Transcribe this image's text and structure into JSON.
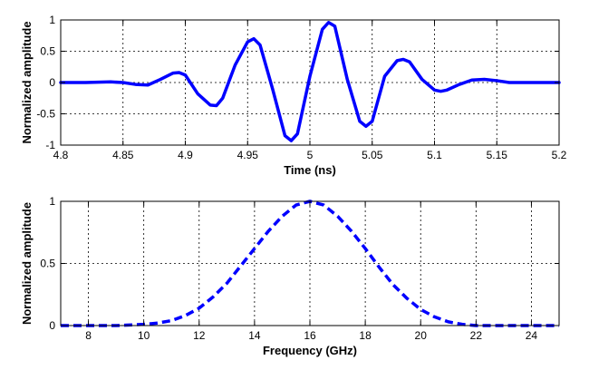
{
  "chart_data": [
    {
      "type": "line",
      "title": "",
      "xlabel": "Time (ns)",
      "ylabel": "Normalized amplitude",
      "xlim": [
        4.8,
        5.2
      ],
      "ylim": [
        -1,
        1
      ],
      "xticks": [
        4.8,
        4.85,
        4.9,
        4.95,
        5,
        5.05,
        5.1,
        5.15,
        5.2
      ],
      "xtick_labels": [
        "4.8",
        "4.85",
        "4.9",
        "4.95",
        "5",
        "5.05",
        "5.1",
        "5.15",
        "5.2"
      ],
      "yticks": [
        -1,
        -0.5,
        0,
        0.5,
        1
      ],
      "ytick_labels": [
        "-1",
        "-0.5",
        "0",
        "0.5",
        "1"
      ],
      "grid": true,
      "line_style": "solid",
      "color": "#0000ff",
      "series": [
        {
          "x": [
            4.8,
            4.82,
            4.84,
            4.85,
            4.86,
            4.87,
            4.88,
            4.89,
            4.895,
            4.9,
            4.91,
            4.92,
            4.925,
            4.93,
            4.94,
            4.95,
            4.955,
            4.96,
            4.97,
            4.98,
            4.985,
            4.99,
            5.0,
            5.01,
            5.015,
            5.02,
            5.03,
            5.04,
            5.045,
            5.05,
            5.06,
            5.07,
            5.075,
            5.08,
            5.09,
            5.1,
            5.105,
            5.11,
            5.12,
            5.13,
            5.14,
            5.15,
            5.16,
            5.18,
            5.2
          ],
          "y": [
            0.0,
            0.0,
            0.01,
            0.0,
            -0.03,
            -0.04,
            0.05,
            0.15,
            0.16,
            0.12,
            -0.18,
            -0.36,
            -0.37,
            -0.25,
            0.28,
            0.65,
            0.7,
            0.6,
            -0.1,
            -0.85,
            -0.93,
            -0.82,
            0.1,
            0.85,
            0.96,
            0.9,
            0.05,
            -0.62,
            -0.7,
            -0.62,
            0.1,
            0.35,
            0.37,
            0.33,
            0.05,
            -0.12,
            -0.14,
            -0.12,
            -0.03,
            0.04,
            0.05,
            0.03,
            0.0,
            0.0,
            0.0
          ]
        }
      ]
    },
    {
      "type": "line",
      "title": "",
      "xlabel": "Frequency (GHz)",
      "ylabel": "Normalized amplitude",
      "xlim": [
        7,
        25
      ],
      "ylim": [
        0,
        1
      ],
      "xticks": [
        8,
        10,
        12,
        14,
        16,
        18,
        20,
        22,
        24
      ],
      "xtick_labels": [
        "8",
        "10",
        "12",
        "14",
        "16",
        "18",
        "20",
        "22",
        "24"
      ],
      "yticks": [
        0,
        0.5,
        1
      ],
      "ytick_labels": [
        "0",
        "0.5",
        "1"
      ],
      "grid": true,
      "line_style": "dashed",
      "color": "#0000ff",
      "series": [
        {
          "x": [
            7,
            8,
            9,
            10,
            10.5,
            11,
            11.5,
            12,
            12.5,
            13,
            13.5,
            14,
            14.5,
            15,
            15.5,
            16,
            16.5,
            17,
            17.5,
            18,
            18.5,
            19,
            19.5,
            20,
            20.5,
            21,
            21.5,
            22,
            23,
            24,
            25
          ],
          "y": [
            0.0,
            0.0,
            0.0,
            0.01,
            0.02,
            0.04,
            0.08,
            0.14,
            0.23,
            0.34,
            0.48,
            0.62,
            0.76,
            0.88,
            0.97,
            1.0,
            0.97,
            0.88,
            0.76,
            0.62,
            0.47,
            0.33,
            0.22,
            0.13,
            0.07,
            0.03,
            0.01,
            0.0,
            0.0,
            0.0,
            0.0
          ]
        }
      ]
    }
  ]
}
